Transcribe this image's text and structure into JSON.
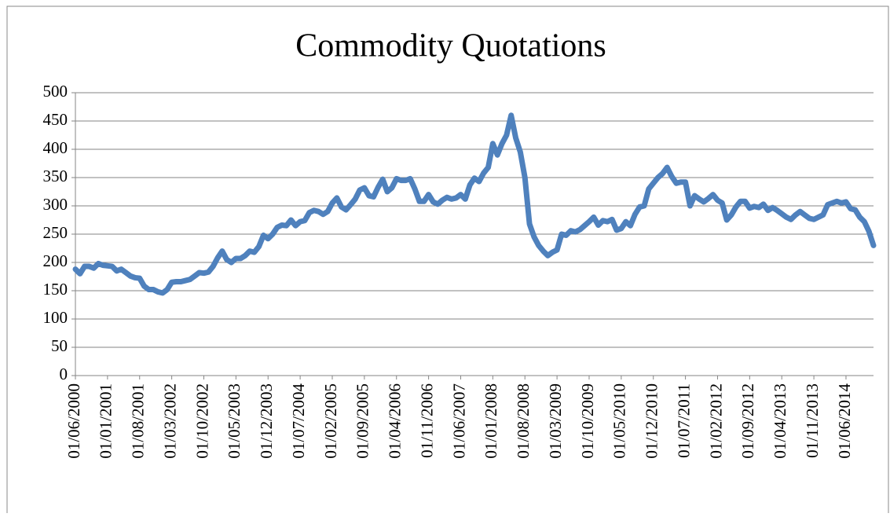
{
  "chart_data": {
    "type": "line",
    "title": "Commodity Quotations",
    "categories": [
      "01/06/2000",
      null,
      null,
      null,
      null,
      null,
      null,
      "01/01/2001",
      null,
      null,
      null,
      null,
      null,
      null,
      "01/08/2001",
      null,
      null,
      null,
      null,
      null,
      null,
      "01/03/2002",
      null,
      null,
      null,
      null,
      null,
      null,
      "01/10/2002",
      null,
      null,
      null,
      null,
      null,
      null,
      "01/05/2003",
      null,
      null,
      null,
      null,
      null,
      null,
      "01/12/2003",
      null,
      null,
      null,
      null,
      null,
      null,
      "01/07/2004",
      null,
      null,
      null,
      null,
      null,
      null,
      "01/02/2005",
      null,
      null,
      null,
      null,
      null,
      null,
      "01/09/2005",
      null,
      null,
      null,
      null,
      null,
      null,
      "01/04/2006",
      null,
      null,
      null,
      null,
      null,
      null,
      "01/11/2006",
      null,
      null,
      null,
      null,
      null,
      null,
      "01/06/2007",
      null,
      null,
      null,
      null,
      null,
      null,
      "01/01/2008",
      null,
      null,
      null,
      null,
      null,
      null,
      "01/08/2008",
      null,
      null,
      null,
      null,
      null,
      null,
      "01/03/2009",
      null,
      null,
      null,
      null,
      null,
      null,
      "01/10/2009",
      null,
      null,
      null,
      null,
      null,
      null,
      "01/05/2010",
      null,
      null,
      null,
      null,
      null,
      null,
      "01/12/2010",
      null,
      null,
      null,
      null,
      null,
      null,
      "01/07/2011",
      null,
      null,
      null,
      null,
      null,
      null,
      "01/02/2012",
      null,
      null,
      null,
      null,
      null,
      null,
      "01/09/2012",
      null,
      null,
      null,
      null,
      null,
      null,
      "01/04/2013",
      null,
      null,
      null,
      null,
      null,
      null,
      "01/11/2013",
      null,
      null,
      null,
      null,
      null,
      null,
      "01/06/2014",
      null,
      null,
      null,
      null,
      null,
      null
    ],
    "series": [
      {
        "color": "#4f81bd",
        "values": [
          188,
          180,
          193,
          193,
          190,
          198,
          195,
          194,
          193,
          185,
          188,
          182,
          176,
          173,
          172,
          158,
          152,
          152,
          148,
          146,
          152,
          165,
          166,
          166,
          168,
          170,
          176,
          182,
          181,
          183,
          193,
          208,
          220,
          205,
          200,
          207,
          207,
          212,
          220,
          218,
          228,
          248,
          242,
          250,
          262,
          266,
          265,
          275,
          265,
          272,
          274,
          288,
          292,
          290,
          285,
          290,
          305,
          314,
          298,
          293,
          302,
          312,
          328,
          332,
          318,
          316,
          333,
          347,
          325,
          332,
          348,
          345,
          345,
          348,
          330,
          308,
          308,
          320,
          307,
          303,
          310,
          315,
          312,
          314,
          320,
          312,
          337,
          349,
          343,
          358,
          368,
          410,
          390,
          410,
          425,
          460,
          420,
          395,
          350,
          268,
          245,
          230,
          220,
          212,
          218,
          222,
          250,
          248,
          256,
          254,
          258,
          265,
          272,
          280,
          266,
          274,
          272,
          276,
          257,
          260,
          272,
          265,
          285,
          298,
          300,
          330,
          340,
          350,
          357,
          368,
          352,
          340,
          342,
          342,
          300,
          318,
          312,
          307,
          313,
          320,
          310,
          305,
          275,
          284,
          298,
          308,
          308,
          296,
          299,
          297,
          303,
          292,
          297,
          292,
          286,
          280,
          276,
          284,
          290,
          284,
          278,
          276,
          280,
          284,
          302,
          305,
          308,
          305,
          307,
          295,
          293,
          280,
          272,
          255,
          230
        ]
      }
    ],
    "ylim": [
      0,
      500
    ],
    "yticks": [
      0,
      50,
      100,
      150,
      200,
      250,
      300,
      350,
      400,
      450,
      500
    ],
    "grid": true
  }
}
